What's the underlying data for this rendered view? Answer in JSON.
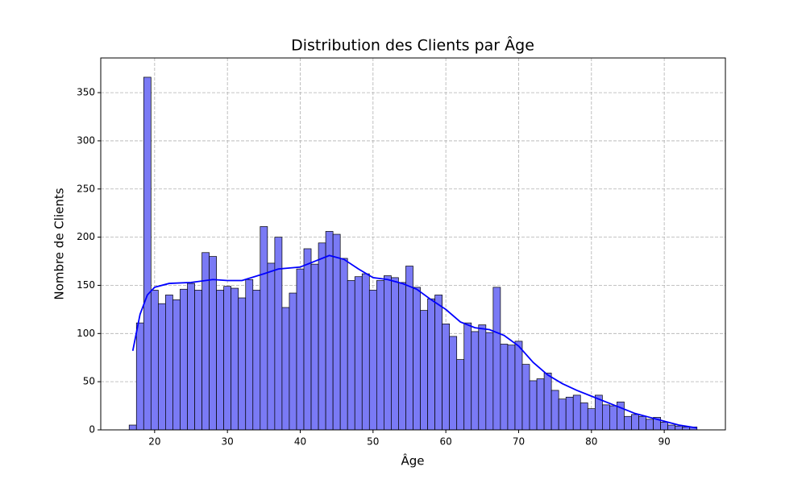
{
  "chart_data": {
    "type": "histogram",
    "title": "Distribution des Clients par Âge",
    "x_label": "Âge",
    "y_label": "Nombre de Clients",
    "bins": [
      16.5,
      17.5,
      18.5,
      19.5,
      20.5,
      21.5,
      22.5,
      23.5,
      24.5,
      25.5,
      26.5,
      27.5,
      28.5,
      29.5,
      30.5,
      31.5,
      32.5,
      33.5,
      34.5,
      35.5,
      36.5,
      37.5,
      38.5,
      39.5,
      40.5,
      41.5,
      42.5,
      43.5,
      44.5,
      45.5,
      46.5,
      47.5,
      48.5,
      49.5,
      50.5,
      51.5,
      52.5,
      53.5,
      54.5,
      55.5,
      56.5,
      57.5,
      58.5,
      59.5,
      60.5,
      61.5,
      62.5,
      63.5,
      64.5,
      65.5,
      66.5,
      67.5,
      68.5,
      69.5,
      70.5,
      71.5,
      72.5,
      73.5,
      74.5,
      75.5,
      76.5,
      77.5,
      78.5,
      79.5,
      80.5,
      81.5,
      82.5,
      83.5,
      84.5,
      85.5,
      86.5,
      87.5,
      88.5,
      89.5,
      90.5,
      91.5,
      92.5,
      93.5,
      94.5
    ],
    "values": [
      5,
      111,
      366,
      145,
      131,
      140,
      135,
      146,
      152,
      145,
      184,
      180,
      145,
      149,
      147,
      137,
      156,
      145,
      211,
      173,
      200,
      127,
      142,
      167,
      188,
      172,
      194,
      206,
      203,
      178,
      155,
      159,
      162,
      145,
      155,
      160,
      158,
      153,
      170,
      148,
      124,
      136,
      140,
      110,
      97,
      73,
      111,
      102,
      109,
      101,
      148,
      89,
      88,
      92,
      68,
      51,
      53,
      59,
      41,
      32,
      34,
      36,
      28,
      22,
      36,
      26,
      25,
      29,
      14,
      16,
      14,
      11,
      13,
      8,
      5,
      4,
      3,
      3
    ],
    "color": "#7a7af5",
    "kde": {
      "color": "#0000ff",
      "x": [
        17,
        18,
        19,
        20,
        22,
        25,
        28,
        30,
        32,
        35,
        37,
        40,
        42,
        44,
        46,
        48,
        50,
        52,
        54,
        56,
        58,
        60,
        62,
        64,
        66,
        68,
        70,
        72,
        74,
        76,
        78,
        80,
        82,
        84,
        86,
        88,
        90,
        92,
        94.5
      ],
      "values": [
        82,
        120,
        140,
        148,
        152,
        153,
        156,
        155,
        155,
        162,
        167,
        169,
        175,
        181,
        177,
        167,
        158,
        156,
        152,
        146,
        135,
        125,
        112,
        106,
        104,
        98,
        87,
        70,
        57,
        48,
        41,
        35,
        29,
        23,
        17,
        13,
        9,
        5,
        2
      ]
    },
    "xlim": [
      12.6,
      98.4
    ],
    "ylim": [
      0,
      386
    ],
    "xticks": [
      20,
      30,
      40,
      50,
      60,
      70,
      80,
      90
    ],
    "yticks": [
      0,
      50,
      100,
      150,
      200,
      250,
      300,
      350
    ],
    "grid": true
  }
}
